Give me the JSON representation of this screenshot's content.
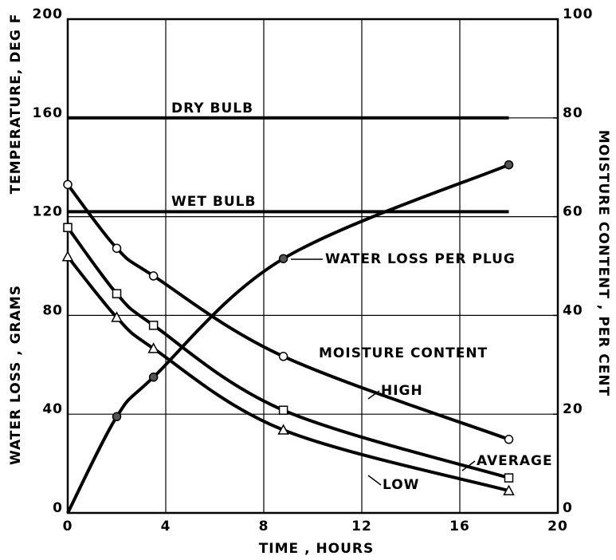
{
  "chart_data": {
    "type": "line",
    "xlabel": "TIME , HOURS",
    "ylabel": "TEMPERATURE, DEG F",
    "ylabel_lower": "WATER LOSS , GRAMS",
    "y2label": "MOISTURE CONTENT , PER CENT",
    "xlim": [
      0,
      20
    ],
    "xticks": [
      0,
      4,
      8,
      12,
      16,
      20
    ],
    "ylim": [
      0,
      200
    ],
    "yticks": [
      0,
      40,
      80,
      120,
      160,
      200
    ],
    "y2lim": [
      0,
      100
    ],
    "y2ticks": [
      0,
      20,
      40,
      60,
      80,
      100
    ],
    "grid": true,
    "series": [
      {
        "name": "DRY BULB",
        "color": "#000000",
        "marker": "none",
        "x": [
          0,
          18
        ],
        "values": [
          160,
          160
        ]
      },
      {
        "name": "WET BULB",
        "color": "#000000",
        "marker": "none",
        "x": [
          0,
          18
        ],
        "values": [
          122,
          122
        ]
      },
      {
        "name": "WATER LOSS PER PLUG",
        "color": "#000000",
        "marker": "dot",
        "x": [
          0,
          2,
          3.5,
          8.8,
          18
        ],
        "values": [
          0,
          39,
          55,
          103,
          141
        ]
      },
      {
        "name": "HIGH",
        "color": "#000000",
        "marker": "circle",
        "axis": "y2",
        "x": [
          0,
          2,
          3.5,
          8.8,
          18
        ],
        "values": [
          66.5,
          53.6,
          48,
          31.7,
          14.9
        ]
      },
      {
        "name": "AVERAGE",
        "color": "#000000",
        "marker": "square",
        "axis": "y2",
        "x": [
          0,
          2,
          3.5,
          8.8,
          18
        ],
        "values": [
          57.8,
          44.4,
          38,
          20.8,
          7.1
        ]
      },
      {
        "name": "LOW",
        "color": "#000000",
        "marker": "triangle",
        "axis": "y2",
        "x": [
          0,
          2,
          3.5,
          8.8,
          18
        ],
        "values": [
          51.9,
          39.6,
          33.3,
          16.8,
          4.5
        ]
      }
    ],
    "annotations": [
      "MOISTURE CONTENT"
    ]
  }
}
